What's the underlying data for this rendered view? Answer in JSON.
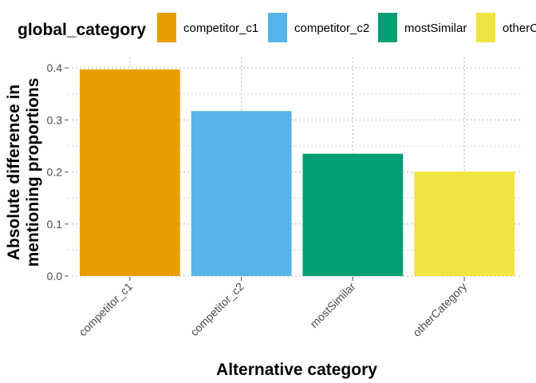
{
  "chart_data": {
    "type": "bar",
    "title": "",
    "xlabel": "Alternative category",
    "ylabel_lines": [
      "Absolute difference in",
      "mentioning proportions"
    ],
    "categories": [
      "competitor_c1",
      "competitor_c2",
      "mostSimilar",
      "otherCategory"
    ],
    "values": [
      0.397,
      0.317,
      0.235,
      0.201
    ],
    "colors": [
      "#E69F00",
      "#56B4E9",
      "#009E73",
      "#F0E442"
    ],
    "ylim": [
      0,
      0.42
    ],
    "yticks": [
      0.0,
      0.1,
      0.2,
      0.3,
      0.4
    ],
    "ytick_labels": [
      "0.0",
      "0.1",
      "0.2",
      "0.3",
      "0.4"
    ],
    "grid": true,
    "legend": {
      "title": "global_category",
      "position": "top",
      "entries": [
        "competitor_c1",
        "competitor_c2",
        "mostSimilar",
        "otherCategory"
      ]
    }
  }
}
